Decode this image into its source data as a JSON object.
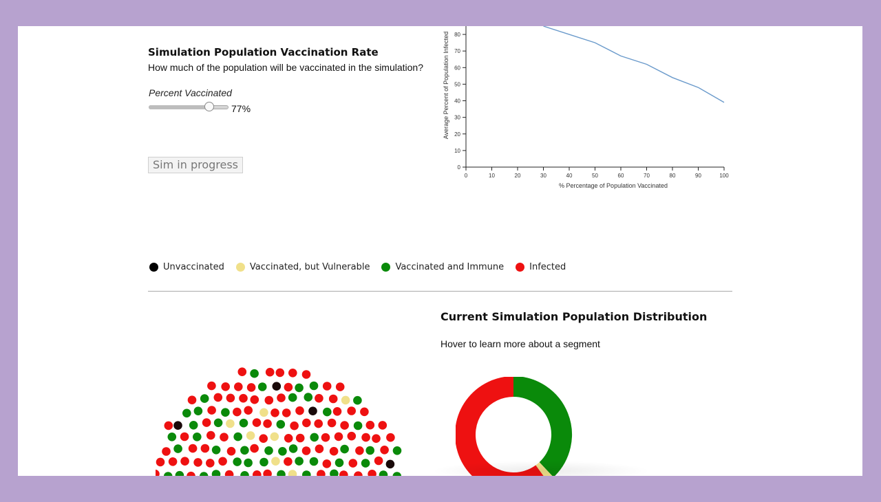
{
  "controls": {
    "title": "Simulation Population Vaccination Rate",
    "question": "How much of the population will be vaccinated in the simulation?",
    "slider_label": "Percent Vaccinated",
    "slider_value": 77,
    "slider_value_text": "77%",
    "button_label": "Sim in progress"
  },
  "chart_data": {
    "type": "line",
    "ylabel": "Average Percent of Population Infected",
    "xlabel": "% Percentage of Population Vaccinated",
    "x_ticks": [
      "0",
      "10",
      "20",
      "30",
      "40",
      "50",
      "60",
      "70",
      "80",
      "90",
      "100"
    ],
    "y_ticks": [
      "0",
      "10",
      "20",
      "30",
      "40",
      "50",
      "60",
      "70",
      "80"
    ],
    "xlim": [
      0,
      100
    ],
    "ylim": [
      0,
      85
    ],
    "x": [
      30,
      40,
      50,
      60,
      70,
      80,
      90,
      100
    ],
    "y": [
      85,
      80,
      75,
      67,
      62,
      54,
      48,
      39
    ],
    "line_color": "#6a9acb"
  },
  "legend": {
    "items": [
      {
        "label": "Unvaccinated",
        "color": "#000000"
      },
      {
        "label": "Vaccinated, but Vulnerable",
        "color": "#f0e08a"
      },
      {
        "label": "Vaccinated and Immune",
        "color": "#0a8a0a"
      },
      {
        "label": "Infected",
        "color": "#ee1111"
      }
    ]
  },
  "distribution": {
    "title": "Current Simulation Population Distribution",
    "hint": "Hover to learn more about a segment",
    "segments": [
      {
        "state": "Vaccinated and Immune",
        "fraction": 0.38,
        "color": "#0a8a0a"
      },
      {
        "state": "Vaccinated, but Vulnerable",
        "fraction": 0.02,
        "color": "#f0e08a"
      },
      {
        "state": "Infected",
        "fraction": 0.6,
        "color": "#ee1111"
      }
    ]
  },
  "population_colors": {
    "unvaccinated": "#1a0a0a",
    "vulnerable": "#f0e08a",
    "immune": "#0a8a0a",
    "infected": "#ee1111"
  }
}
